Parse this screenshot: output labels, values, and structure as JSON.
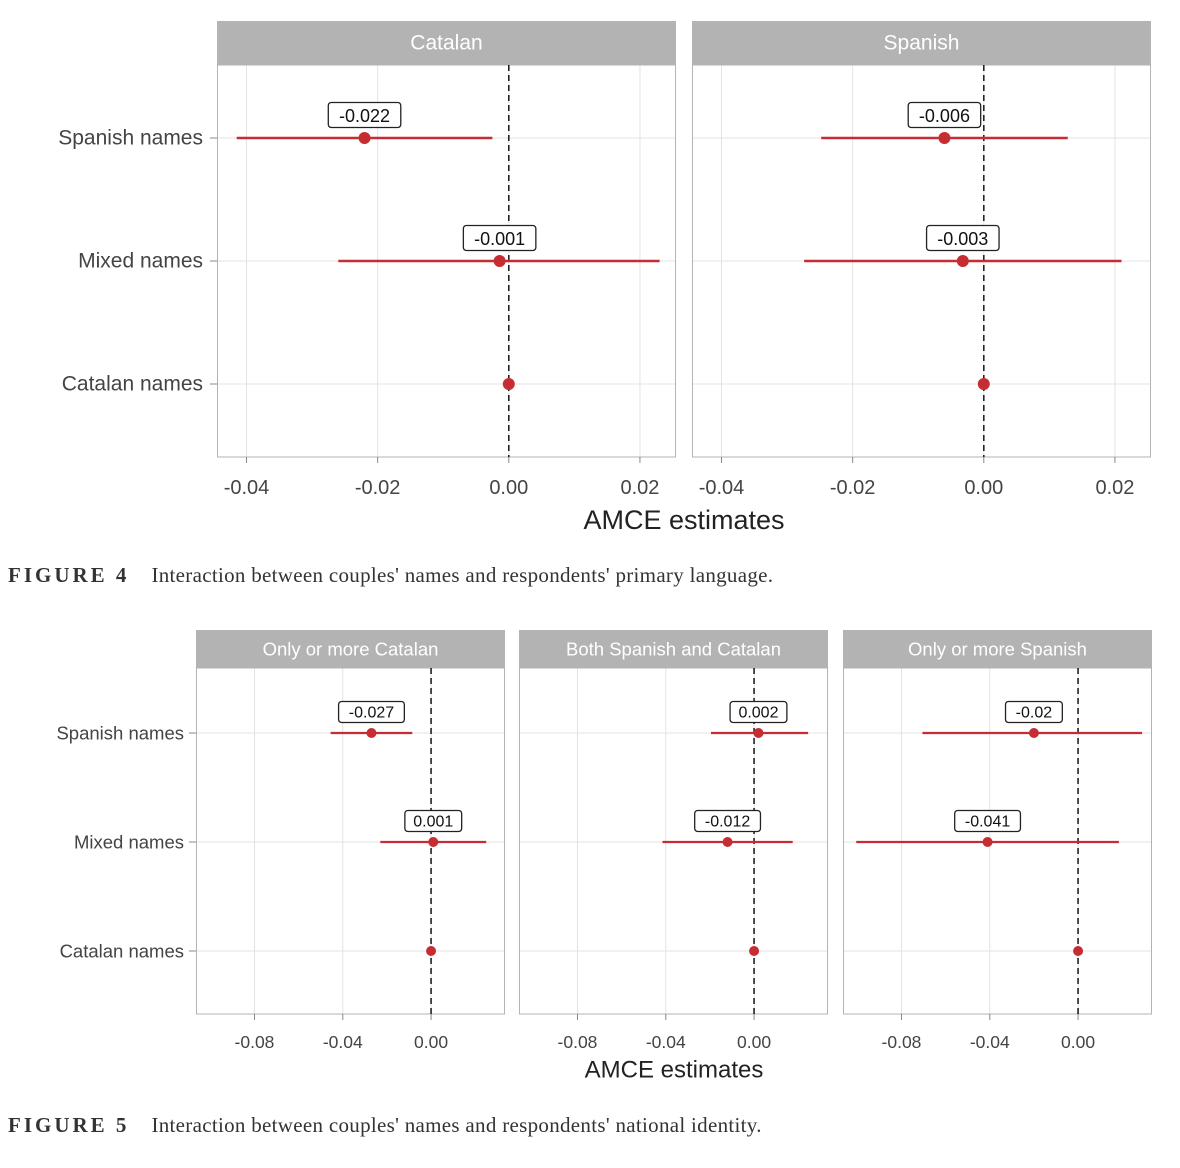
{
  "chart_data": [
    {
      "type": "forest",
      "xlabel": "AMCE estimates",
      "categories": [
        "Spanish names",
        "Mixed names",
        "Catalan names"
      ],
      "x_ticks": [
        -0.04,
        -0.02,
        0.0,
        0.02
      ],
      "x_tick_labels": [
        "-0.04",
        "-0.02",
        "0.00",
        "0.02"
      ],
      "xlim": [
        -0.0445,
        0.0255
      ],
      "reference_line": 0,
      "colors": {
        "point": "#c62d32",
        "strip": "#b3b3b3",
        "grid": "#e3e3e3",
        "frame": "#b3b3b3"
      },
      "panels": [
        {
          "title": "Catalan",
          "points": [
            {
              "category": "Spanish names",
              "estimate": -0.022,
              "lower": -0.0415,
              "upper": -0.0025,
              "label": "-0.022"
            },
            {
              "category": "Mixed names",
              "estimate": -0.0014,
              "lower": -0.026,
              "upper": 0.023,
              "label": "-0.001"
            },
            {
              "category": "Catalan names",
              "estimate": 0.0,
              "lower": 0.0,
              "upper": 0.0,
              "label": ""
            }
          ]
        },
        {
          "title": "Spanish",
          "points": [
            {
              "category": "Spanish names",
              "estimate": -0.006,
              "lower": -0.0248,
              "upper": 0.0128,
              "label": "-0.006"
            },
            {
              "category": "Mixed names",
              "estimate": -0.0032,
              "lower": -0.0274,
              "upper": 0.021,
              "label": "-0.003"
            },
            {
              "category": "Catalan names",
              "estimate": 0.0,
              "lower": 0.0,
              "upper": 0.0,
              "label": ""
            }
          ]
        }
      ]
    },
    {
      "type": "forest",
      "xlabel": "AMCE estimates",
      "categories": [
        "Spanish names",
        "Mixed names",
        "Catalan names"
      ],
      "x_ticks": [
        -0.08,
        -0.04,
        0.0
      ],
      "x_tick_labels": [
        "-0.08",
        "-0.04",
        "0.00"
      ],
      "xlim": [
        -0.1065,
        0.0335
      ],
      "reference_line": 0,
      "colors": {
        "point": "#c62d32",
        "strip": "#b3b3b3",
        "grid": "#e3e3e3",
        "frame": "#b3b3b3"
      },
      "panels": [
        {
          "title": "Only or more Catalan",
          "points": [
            {
              "category": "Spanish names",
              "estimate": -0.027,
              "lower": -0.0455,
              "upper": -0.0085,
              "label": "-0.027"
            },
            {
              "category": "Mixed names",
              "estimate": 0.001,
              "lower": -0.023,
              "upper": 0.025,
              "label": "0.001"
            },
            {
              "category": "Catalan names",
              "estimate": 0.0,
              "lower": 0.0,
              "upper": 0.0,
              "label": ""
            }
          ]
        },
        {
          "title": "Both Spanish and Catalan",
          "points": [
            {
              "category": "Spanish names",
              "estimate": 0.002,
              "lower": -0.0195,
              "upper": 0.0245,
              "label": "0.002"
            },
            {
              "category": "Mixed names",
              "estimate": -0.012,
              "lower": -0.0415,
              "upper": 0.0175,
              "label": "-0.012"
            },
            {
              "category": "Catalan names",
              "estimate": 0.0,
              "lower": 0.0,
              "upper": 0.0,
              "label": ""
            }
          ]
        },
        {
          "title": "Only or more Spanish",
          "points": [
            {
              "category": "Spanish names",
              "estimate": -0.02,
              "lower": -0.0705,
              "upper": 0.029,
              "label": "-0.02"
            },
            {
              "category": "Mixed names",
              "estimate": -0.041,
              "lower": -0.1005,
              "upper": 0.0185,
              "label": "-0.041"
            },
            {
              "category": "Catalan names",
              "estimate": 0.0,
              "lower": 0.0,
              "upper": 0.0,
              "label": ""
            }
          ]
        }
      ]
    }
  ],
  "captions": [
    {
      "figure": "FIGURE 4",
      "text": "Interaction between couples' names and respondents' primary language."
    },
    {
      "figure": "FIGURE 5",
      "text": "Interaction between couples' names and respondents' national identity."
    }
  ]
}
